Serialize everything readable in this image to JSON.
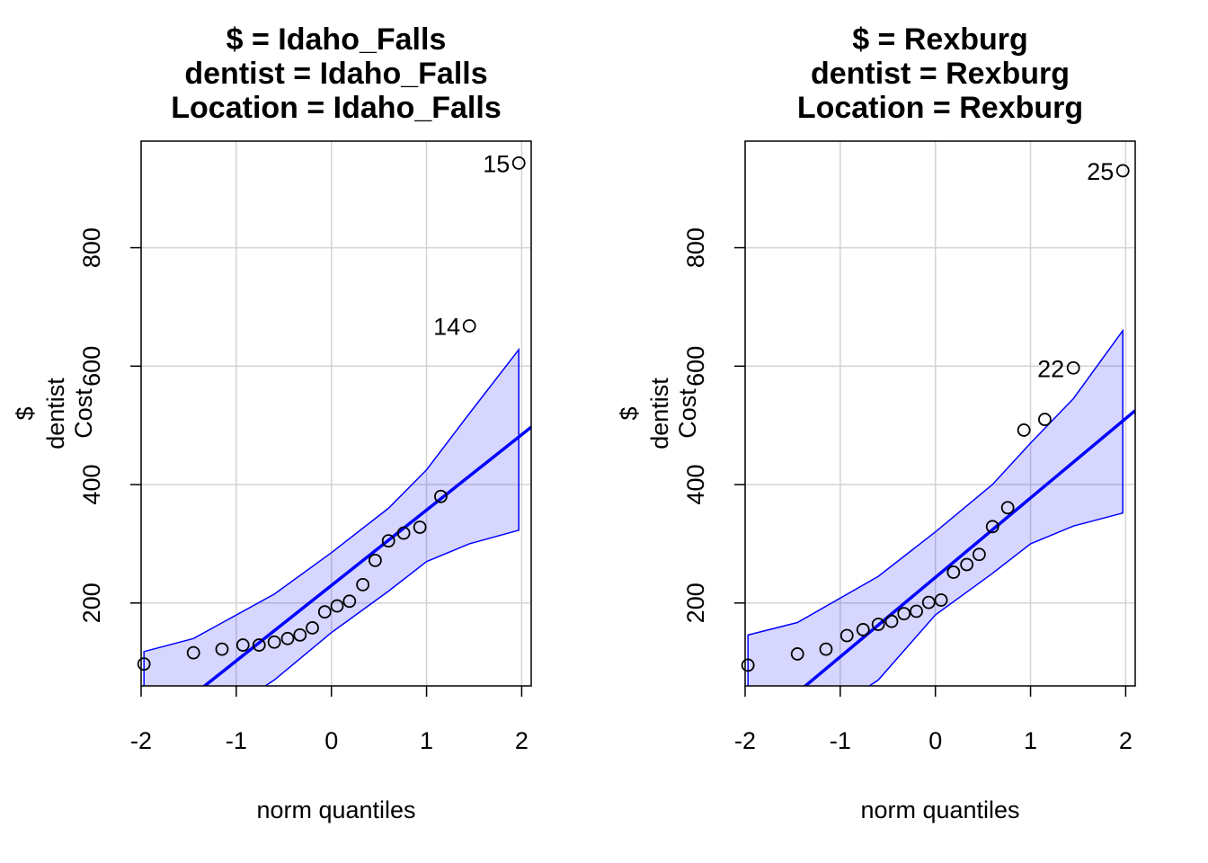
{
  "chart_data": [
    {
      "type": "scatter",
      "title_lines": [
        "$ = Idaho_Falls",
        "dentist = Idaho_Falls",
        "Location = Idaho_Falls"
      ],
      "xlabel": "norm quantiles",
      "ylabel_lines": [
        "$",
        "dentist",
        "Cost"
      ],
      "xlim": [
        -2.0,
        2.1
      ],
      "ylim": [
        60,
        980
      ],
      "xticks": [
        -2,
        -1,
        0,
        1,
        2
      ],
      "yticks": [
        200,
        400,
        600,
        800
      ],
      "grid": true,
      "points": {
        "x": [
          -1.97,
          -1.45,
          -1.15,
          -0.93,
          -0.76,
          -0.6,
          -0.46,
          -0.33,
          -0.2,
          -0.07,
          0.06,
          0.19,
          0.33,
          0.46,
          0.6,
          0.76,
          0.93,
          1.15,
          1.45,
          1.97
        ],
        "y": [
          97,
          116,
          122,
          129,
          129,
          134,
          140,
          146,
          158,
          185,
          195,
          203,
          231,
          272,
          305,
          318,
          328,
          380,
          668,
          943
        ]
      },
      "labeled_points": [
        {
          "label": "14",
          "x": 1.45,
          "y": 668
        },
        {
          "label": "15",
          "x": 1.97,
          "y": 943
        }
      ],
      "fit_line": {
        "x": [
          -2.0,
          2.1
        ],
        "y": [
          -25,
          497
        ]
      },
      "band": {
        "x": [
          -1.97,
          -1.45,
          -0.6,
          0,
          0.6,
          1.0,
          1.45,
          1.97
        ],
        "upper": [
          118,
          140,
          215,
          285,
          360,
          425,
          520,
          628
        ],
        "lower": [
          -60,
          -20,
          70,
          150,
          220,
          270,
          300,
          323
        ]
      }
    },
    {
      "type": "scatter",
      "title_lines": [
        "$ = Rexburg",
        "dentist = Rexburg",
        "Location = Rexburg"
      ],
      "xlabel": "norm quantiles",
      "ylabel_lines": [
        "$",
        "dentist",
        "Cost"
      ],
      "xlim": [
        -2.0,
        2.1
      ],
      "ylim": [
        60,
        980
      ],
      "xticks": [
        -2,
        -1,
        0,
        1,
        2
      ],
      "yticks": [
        200,
        400,
        600,
        800
      ],
      "grid": true,
      "points": {
        "x": [
          -1.97,
          -1.45,
          -1.15,
          -0.93,
          -0.76,
          -0.6,
          -0.46,
          -0.33,
          -0.2,
          -0.07,
          0.06,
          0.19,
          0.33,
          0.46,
          0.6,
          0.76,
          0.93,
          1.15,
          1.45,
          1.97
        ],
        "y": [
          95,
          114,
          122,
          145,
          155,
          164,
          169,
          182,
          186,
          201,
          205,
          252,
          265,
          282,
          329,
          361,
          492,
          510,
          597,
          930
        ]
      },
      "labeled_points": [
        {
          "label": "22",
          "x": 1.45,
          "y": 597
        },
        {
          "label": "25",
          "x": 1.97,
          "y": 930
        }
      ],
      "fit_line": {
        "x": [
          -2.0,
          2.1
        ],
        "y": [
          -25,
          525
        ]
      },
      "band": {
        "x": [
          -1.97,
          -1.45,
          -0.6,
          0,
          0.6,
          1.0,
          1.45,
          1.97
        ],
        "upper": [
          146,
          167,
          245,
          320,
          400,
          470,
          545,
          660
        ],
        "lower": [
          -60,
          -20,
          70,
          180,
          250,
          300,
          330,
          352
        ]
      }
    }
  ]
}
